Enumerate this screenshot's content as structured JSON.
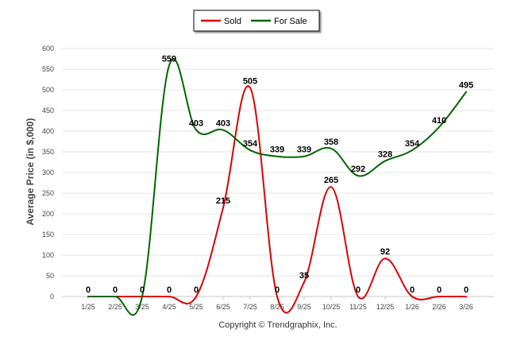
{
  "chart_data": {
    "type": "line",
    "categories": [
      "1/25",
      "2/25",
      "3/25",
      "4/25",
      "5/25",
      "6/25",
      "7/25",
      "8/25",
      "9/25",
      "10/25",
      "11/25",
      "12/25",
      "1/26",
      "2/26",
      "3/26"
    ],
    "series": [
      {
        "name": "Sold",
        "color": "#dd0000",
        "values": [
          0,
          0,
          0,
          0,
          0,
          215,
          505,
          0,
          35,
          265,
          0,
          92,
          0,
          0,
          0
        ],
        "labels": [
          "0",
          "0",
          "0",
          "0",
          "0",
          "215",
          "505",
          "0",
          "35",
          "265",
          "0",
          "92",
          "0",
          "0",
          "0"
        ]
      },
      {
        "name": "For Sale",
        "color": "#006600",
        "values": [
          0,
          0,
          0,
          559,
          403,
          403,
          354,
          339,
          339,
          358,
          292,
          328,
          354,
          410,
          495
        ],
        "labels": [
          "",
          "",
          "",
          "559",
          "403",
          "403",
          "354",
          "339",
          "339",
          "358",
          "292",
          "328",
          "354",
          "410",
          "495"
        ]
      }
    ],
    "ylabel": "Average Price (in $,000)",
    "ylim": [
      0,
      600
    ],
    "yticks": [
      "0",
      "50",
      "100",
      "150",
      "200",
      "250",
      "300",
      "350",
      "400",
      "450",
      "500",
      "550",
      "600"
    ],
    "grid": true,
    "legend_position": "top-center"
  },
  "credit": "Copyright © Trendgraphix, Inc."
}
